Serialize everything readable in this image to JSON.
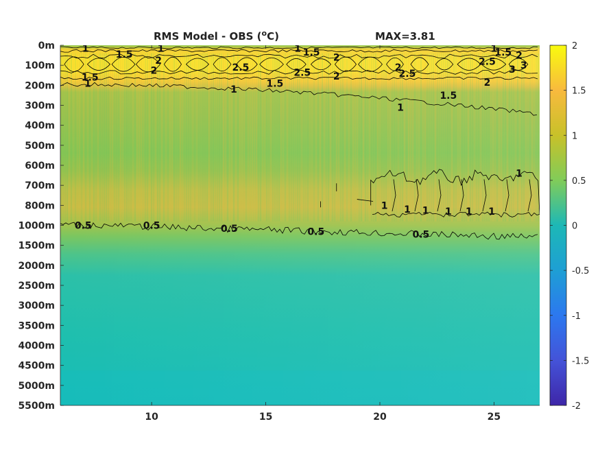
{
  "chart_data": {
    "type": "heatmap",
    "title": "RMS Model - OBS (",
    "title_unit": "o",
    "title_end": "C)",
    "max_label": "MAX=3.81",
    "x_ticks": [
      10,
      15,
      20,
      25
    ],
    "xlim": [
      6,
      27
    ],
    "y_tick_labels": [
      "0m",
      "100m",
      "200m",
      "300m",
      "400m",
      "500m",
      "600m",
      "700m",
      "800m",
      "1000m",
      "1500m",
      "2000m",
      "2500m",
      "3000m",
      "3500m",
      "4000m",
      "4500m",
      "5000m",
      "5500m"
    ],
    "colorbar": {
      "min": -2,
      "max": 2,
      "ticks": [
        "2",
        "1.5",
        "1",
        "0.5",
        "0",
        "-0.5",
        "-1",
        "-1.5",
        "-2"
      ]
    },
    "contour_values": [
      0.5,
      1,
      1.5,
      2,
      2.5,
      3
    ],
    "contour_labels": [
      {
        "text": "1",
        "x": 7.1,
        "y": 0.15
      },
      {
        "text": "1.5",
        "x": 8.8,
        "y": 0.45
      },
      {
        "text": "1",
        "x": 10.4,
        "y": 0.15
      },
      {
        "text": "2",
        "x": 10.3,
        "y": 0.75
      },
      {
        "text": "2",
        "x": 10.1,
        "y": 1.25
      },
      {
        "text": "1.5",
        "x": 7.3,
        "y": 1.6
      },
      {
        "text": "1",
        "x": 7.2,
        "y": 1.9
      },
      {
        "text": "2.5",
        "x": 13.9,
        "y": 1.1
      },
      {
        "text": "1.5",
        "x": 15.4,
        "y": 1.9
      },
      {
        "text": "1",
        "x": 13.6,
        "y": 2.2
      },
      {
        "text": "1",
        "x": 16.4,
        "y": 0.15
      },
      {
        "text": "1.5",
        "x": 17.0,
        "y": 0.35
      },
      {
        "text": "2",
        "x": 18.1,
        "y": 0.6
      },
      {
        "text": "2.5",
        "x": 16.6,
        "y": 1.35
      },
      {
        "text": "2",
        "x": 18.1,
        "y": 1.55
      },
      {
        "text": "2",
        "x": 20.8,
        "y": 1.1
      },
      {
        "text": "2.5",
        "x": 21.2,
        "y": 1.4
      },
      {
        "text": "1",
        "x": 20.9,
        "y": 3.1
      },
      {
        "text": "1.5",
        "x": 23.0,
        "y": 2.5
      },
      {
        "text": "1",
        "x": 25.0,
        "y": 0.15
      },
      {
        "text": "1.5",
        "x": 25.4,
        "y": 0.35
      },
      {
        "text": "2",
        "x": 26.1,
        "y": 0.5
      },
      {
        "text": "2.5",
        "x": 24.7,
        "y": 0.8
      },
      {
        "text": "3",
        "x": 25.8,
        "y": 1.2
      },
      {
        "text": "3",
        "x": 26.3,
        "y": 1.0
      },
      {
        "text": "2",
        "x": 24.7,
        "y": 1.85
      },
      {
        "text": "1",
        "x": 26.1,
        "y": 6.4
      },
      {
        "text": "1",
        "x": 20.2,
        "y": 8.0
      },
      {
        "text": "1",
        "x": 21.2,
        "y": 8.2
      },
      {
        "text": "1",
        "x": 22.0,
        "y": 8.25
      },
      {
        "text": "1",
        "x": 23.0,
        "y": 8.3
      },
      {
        "text": "1",
        "x": 23.9,
        "y": 8.3
      },
      {
        "text": "1",
        "x": 24.9,
        "y": 8.3
      },
      {
        "text": "0.5",
        "x": 7.0,
        "y": 9.0
      },
      {
        "text": "0.5",
        "x": 10.0,
        "y": 9.0
      },
      {
        "text": "0.5",
        "x": 13.4,
        "y": 9.15
      },
      {
        "text": "0.5",
        "x": 17.2,
        "y": 9.3
      },
      {
        "text": "0.5",
        "x": 21.8,
        "y": 9.45
      }
    ]
  }
}
